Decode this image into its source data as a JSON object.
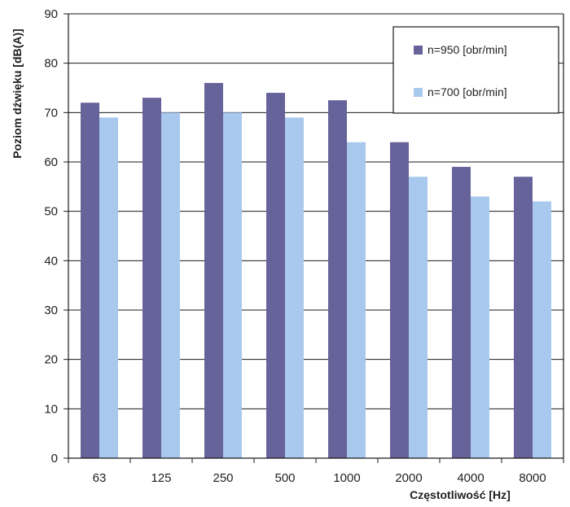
{
  "chart_data": {
    "type": "bar",
    "categories": [
      "63",
      "125",
      "250",
      "500",
      "1000",
      "2000",
      "4000",
      "8000"
    ],
    "series": [
      {
        "name": "n=950 [obr/min]",
        "values": [
          72,
          73,
          76,
          74,
          72.5,
          64,
          59,
          57
        ],
        "color": "#66629a"
      },
      {
        "name": "n=700 [obr/min]",
        "values": [
          69,
          70,
          70,
          69,
          64,
          57,
          53,
          52
        ],
        "color": "#a9c8ee"
      }
    ],
    "title": "",
    "xlabel": "Częstotliwość [Hz]",
    "ylabel": "Poziom dźwięku [dB(A)]",
    "ylim": [
      0,
      90
    ],
    "yticks": [
      0,
      10,
      20,
      30,
      40,
      50,
      60,
      70,
      80,
      90
    ],
    "grid": true,
    "legend": "top-right"
  }
}
